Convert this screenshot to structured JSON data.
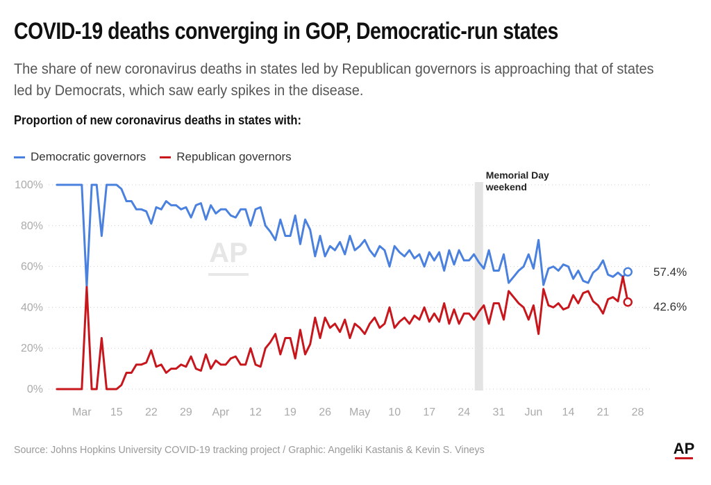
{
  "title": "COVID-19 deaths converging in GOP, Democratic-run states",
  "subtitle": "The share of new coronavirus deaths in states led by Republican governors is approaching that of states led by Democrats, which saw early spikes in the disease.",
  "chart_heading": "Proportion of new coronavirus deaths in states with:",
  "source": "Source: Johns Hopkins University COVID-19 tracking project / Graphic: Angeliki Kastanis & Kevin S. Vineys",
  "logo_text": "AP",
  "watermark_text": "AP",
  "colors": {
    "democratic": "#4a80de",
    "republican": "#c8161d",
    "grid": "#cccccc",
    "annotation_bar": "#e3e3e3"
  },
  "chart_data": {
    "type": "line",
    "title": "Proportion of new coronavirus deaths in states with:",
    "xlabel": "",
    "ylabel": "",
    "ylim": [
      0,
      100
    ],
    "yticks": [
      "0%",
      "20%",
      "40%",
      "60%",
      "80%",
      "100%"
    ],
    "xtick_labels": [
      "Mar",
      "15",
      "22",
      "29",
      "Apr",
      "12",
      "19",
      "26",
      "May",
      "10",
      "17",
      "24",
      "31",
      "Jun",
      "14",
      "21",
      "28"
    ],
    "legend": [
      "Democratic governors",
      "Republican governors"
    ],
    "legend_position": "top-left",
    "grid": "horizontal dotted",
    "annotation": {
      "date_index": 85,
      "label_lines": [
        "Memorial Day",
        "weekend"
      ]
    },
    "end_labels": {
      "democratic": "57.4%",
      "republican": "42.6%"
    },
    "x_start": "Feb 25",
    "series": [
      {
        "name": "Democratic governors",
        "color": "#4a80de",
        "values": [
          100,
          100,
          100,
          100,
          100,
          100,
          50,
          100,
          100,
          75,
          100,
          100,
          100,
          98,
          92,
          92,
          88,
          88,
          87,
          81,
          89,
          88,
          92,
          90,
          90,
          88,
          89,
          84,
          90,
          91,
          83,
          90,
          86,
          88,
          88,
          85,
          84,
          88,
          88,
          80,
          88,
          89,
          80,
          77,
          73,
          83,
          75,
          75,
          85,
          71,
          83,
          78,
          65,
          75,
          65,
          70,
          68,
          72,
          66,
          75,
          68,
          70,
          73,
          68,
          65,
          70,
          68,
          60,
          70,
          67,
          65,
          68,
          64,
          66,
          60,
          67,
          63,
          67,
          58,
          68,
          61,
          68,
          63,
          63,
          66,
          62,
          59,
          68,
          58,
          58,
          66,
          52,
          55,
          58,
          60,
          66,
          59,
          73,
          51,
          59,
          60,
          58,
          61,
          60,
          54,
          58,
          53,
          52,
          57,
          59,
          63,
          56,
          55,
          57,
          55,
          57.4
        ]
      },
      {
        "name": "Republican governors",
        "color": "#c8161d",
        "values": [
          0,
          0,
          0,
          0,
          0,
          0,
          50,
          0,
          0,
          25,
          0,
          0,
          0,
          2,
          8,
          8,
          12,
          12,
          13,
          19,
          11,
          12,
          8,
          10,
          10,
          12,
          11,
          16,
          10,
          9,
          17,
          10,
          14,
          12,
          12,
          15,
          16,
          12,
          12,
          20,
          12,
          11,
          20,
          23,
          27,
          17,
          25,
          25,
          15,
          29,
          17,
          22,
          35,
          25,
          35,
          30,
          32,
          28,
          34,
          25,
          32,
          30,
          27,
          32,
          35,
          30,
          32,
          40,
          30,
          33,
          35,
          32,
          36,
          34,
          40,
          33,
          37,
          33,
          42,
          32,
          39,
          32,
          37,
          37,
          34,
          38,
          41,
          32,
          42,
          42,
          34,
          48,
          45,
          42,
          40,
          34,
          41,
          27,
          49,
          41,
          40,
          42,
          39,
          40,
          46,
          42,
          47,
          48,
          43,
          41,
          37,
          44,
          45,
          43,
          55,
          42.6
        ]
      }
    ]
  }
}
